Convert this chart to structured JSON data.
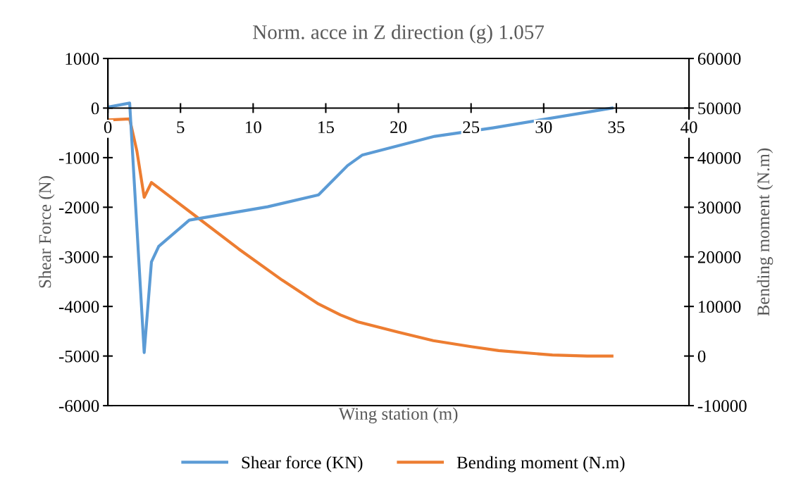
{
  "chart_data": {
    "type": "line",
    "title": "Norm. acce in Z direction (g) 1.057",
    "xlabel": "Wing station (m)",
    "ylabel": "Shear Force (N)",
    "y2label": "Bending moment (N.m)",
    "xlim": [
      0,
      40
    ],
    "xticks": [
      0,
      5,
      10,
      15,
      20,
      25,
      30,
      35,
      40
    ],
    "ylim": [
      -6000,
      1000
    ],
    "yticks": [
      -6000,
      -5000,
      -4000,
      -3000,
      -2000,
      -1000,
      0,
      1000
    ],
    "y2lim": [
      -10000,
      60000
    ],
    "y2ticks": [
      -10000,
      0,
      10000,
      20000,
      30000,
      40000,
      50000,
      60000
    ],
    "grid": false,
    "legend": "bottom",
    "line_style": "solid",
    "marker": "none",
    "series": [
      {
        "name": "Shear force (KN)",
        "color": "#5b9bd5",
        "x": [
          0,
          1.5,
          2.5,
          3.0,
          3.5,
          5.6,
          11,
          14.5,
          16.5,
          17.5,
          22.5,
          26.5,
          34.7
        ],
        "values": [
          20,
          100,
          -4930,
          -3100,
          -2790,
          -2260,
          -1990,
          -1750,
          -1160,
          -950,
          -570,
          -400,
          0
        ]
      },
      {
        "name": "Bending moment (N.m)",
        "color": "#ed7d31",
        "axis": "y2",
        "x": [
          0,
          1.5,
          2.0,
          2.5,
          3.0,
          6,
          9,
          12,
          14.5,
          16,
          17.2,
          20,
          22.4,
          25,
          26.9,
          30.6,
          33,
          34.7
        ],
        "values": [
          47600,
          47800,
          41300,
          32000,
          35000,
          28300,
          21600,
          15300,
          10500,
          8300,
          6900,
          4800,
          3100,
          1900,
          1100,
          200,
          0,
          0
        ]
      }
    ]
  }
}
